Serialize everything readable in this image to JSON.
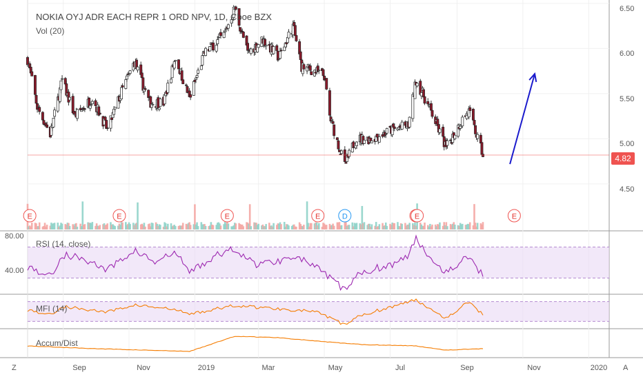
{
  "header": {
    "symbol_title": "NOKIA OYJ ADR EACH REPR 1 ORD NPV, 1D, Cboe BZX",
    "volume_label": "Vol (20)"
  },
  "price_axis": {
    "ticks": [
      "6.50",
      "6.00",
      "5.50",
      "5.00",
      "4.50"
    ],
    "last_price": "4.82"
  },
  "panes": {
    "rsi": {
      "label": "RSI (14, close)",
      "ticks": [
        "80.00",
        "40.00"
      ]
    },
    "mfi": {
      "label": "MFI (14)"
    },
    "accum": {
      "label": "Accum/Dist"
    }
  },
  "time_axis": {
    "labels": [
      "Sep",
      "Nov",
      "2019",
      "Mar",
      "May",
      "Jul",
      "Sep",
      "Nov",
      "2020"
    ],
    "left_corner": "Z",
    "right_corner": "A"
  },
  "event_markers": [
    "E",
    "E",
    "E",
    "E",
    "D",
    "E",
    "E",
    "E"
  ],
  "colors": {
    "up": "#26a69a",
    "down": "#ef5350",
    "candle_up_fill": "#ffffff",
    "candle_down_fill": "#8b1a2b",
    "rsi_line": "#9c27b0",
    "mfi_line": "#f57c00",
    "accum_line": "#f57c00",
    "arrow": "#1a1acc",
    "band_fill": "#e9d8f5"
  },
  "chart_data": {
    "type": "candlestick",
    "title": "NOKIA OYJ ADR EACH REPR 1 ORD NPV, 1D, Cboe BZX",
    "xlabel": "",
    "ylabel": "",
    "ylim": [
      4.2,
      6.6
    ],
    "x_range": [
      "2018-07-30",
      "2020-01-20"
    ],
    "price_anchors": [
      {
        "date": "2018-07-30",
        "close": 5.88
      },
      {
        "date": "2018-08-08",
        "close": 5.35
      },
      {
        "date": "2018-08-20",
        "close": 5.05
      },
      {
        "date": "2018-08-31",
        "close": 5.65
      },
      {
        "date": "2018-09-12",
        "close": 5.25
      },
      {
        "date": "2018-09-28",
        "close": 5.45
      },
      {
        "date": "2018-10-12",
        "close": 5.1
      },
      {
        "date": "2018-10-26",
        "close": 5.55
      },
      {
        "date": "2018-11-06",
        "close": 5.85
      },
      {
        "date": "2018-11-20",
        "close": 5.4
      },
      {
        "date": "2018-12-03",
        "close": 5.4
      },
      {
        "date": "2018-12-14",
        "close": 5.9
      },
      {
        "date": "2018-12-27",
        "close": 5.45
      },
      {
        "date": "2019-01-10",
        "close": 5.95
      },
      {
        "date": "2019-01-28",
        "close": 6.15
      },
      {
        "date": "2019-02-07",
        "close": 6.45
      },
      {
        "date": "2019-02-19",
        "close": 5.95
      },
      {
        "date": "2019-03-05",
        "close": 6.1
      },
      {
        "date": "2019-03-20",
        "close": 5.9
      },
      {
        "date": "2019-04-02",
        "close": 6.25
      },
      {
        "date": "2019-04-10",
        "close": 5.8
      },
      {
        "date": "2019-04-22",
        "close": 5.75
      },
      {
        "date": "2019-05-01",
        "close": 5.7
      },
      {
        "date": "2019-05-06",
        "close": 5.25
      },
      {
        "date": "2019-05-20",
        "close": 4.7
      },
      {
        "date": "2019-05-30",
        "close": 5.0
      },
      {
        "date": "2019-06-14",
        "close": 5.0
      },
      {
        "date": "2019-07-03",
        "close": 5.1
      },
      {
        "date": "2019-07-18",
        "close": 5.15
      },
      {
        "date": "2019-07-25",
        "close": 5.65
      },
      {
        "date": "2019-08-08",
        "close": 5.3
      },
      {
        "date": "2019-08-22",
        "close": 4.9
      },
      {
        "date": "2019-09-05",
        "close": 5.2
      },
      {
        "date": "2019-09-12",
        "close": 5.3
      },
      {
        "date": "2019-09-25",
        "close": 4.82
      }
    ],
    "rsi": {
      "ylim": [
        10,
        90
      ],
      "bands": [
        30,
        70
      ],
      "points": [
        [
          "2018-07-30",
          45
        ],
        [
          "2018-08-20",
          32
        ],
        [
          "2018-09-01",
          60
        ],
        [
          "2018-09-20",
          55
        ],
        [
          "2018-10-12",
          40
        ],
        [
          "2018-11-06",
          66
        ],
        [
          "2018-11-25",
          50
        ],
        [
          "2018-12-14",
          63
        ],
        [
          "2018-12-27",
          38
        ],
        [
          "2019-01-20",
          58
        ],
        [
          "2019-02-07",
          68
        ],
        [
          "2019-02-25",
          48
        ],
        [
          "2019-03-20",
          52
        ],
        [
          "2019-04-02",
          60
        ],
        [
          "2019-04-22",
          45
        ],
        [
          "2019-05-01",
          35
        ],
        [
          "2019-05-20",
          15
        ],
        [
          "2019-06-05",
          38
        ],
        [
          "2019-07-03",
          48
        ],
        [
          "2019-07-18",
          58
        ],
        [
          "2019-07-25",
          82
        ],
        [
          "2019-08-08",
          55
        ],
        [
          "2019-08-22",
          38
        ],
        [
          "2019-09-12",
          58
        ],
        [
          "2019-09-25",
          33
        ]
      ]
    },
    "mfi": {
      "ylim": [
        0,
        100
      ],
      "points": [
        [
          "2018-07-30",
          55
        ],
        [
          "2018-08-20",
          40
        ],
        [
          "2018-09-01",
          65
        ],
        [
          "2018-10-12",
          48
        ],
        [
          "2018-11-06",
          70
        ],
        [
          "2018-12-14",
          55
        ],
        [
          "2018-12-27",
          42
        ],
        [
          "2019-02-07",
          68
        ],
        [
          "2019-03-20",
          58
        ],
        [
          "2019-04-22",
          50
        ],
        [
          "2019-05-20",
          10
        ],
        [
          "2019-06-05",
          40
        ],
        [
          "2019-07-25",
          85
        ],
        [
          "2019-08-22",
          30
        ],
        [
          "2019-09-12",
          80
        ],
        [
          "2019-09-25",
          40
        ]
      ]
    },
    "accum_dist": {
      "points": [
        [
          "2018-07-30",
          40
        ],
        [
          "2018-10-01",
          30
        ],
        [
          "2018-12-27",
          20
        ],
        [
          "2019-02-07",
          75
        ],
        [
          "2019-03-20",
          70
        ],
        [
          "2019-05-01",
          55
        ],
        [
          "2019-06-05",
          45
        ],
        [
          "2019-07-25",
          40
        ],
        [
          "2019-08-22",
          25
        ],
        [
          "2019-09-25",
          30
        ]
      ]
    },
    "annotation_arrow": {
      "from": [
        "2019-10-20",
        4.72
      ],
      "to": [
        "2019-11-12",
        5.72
      ]
    }
  }
}
